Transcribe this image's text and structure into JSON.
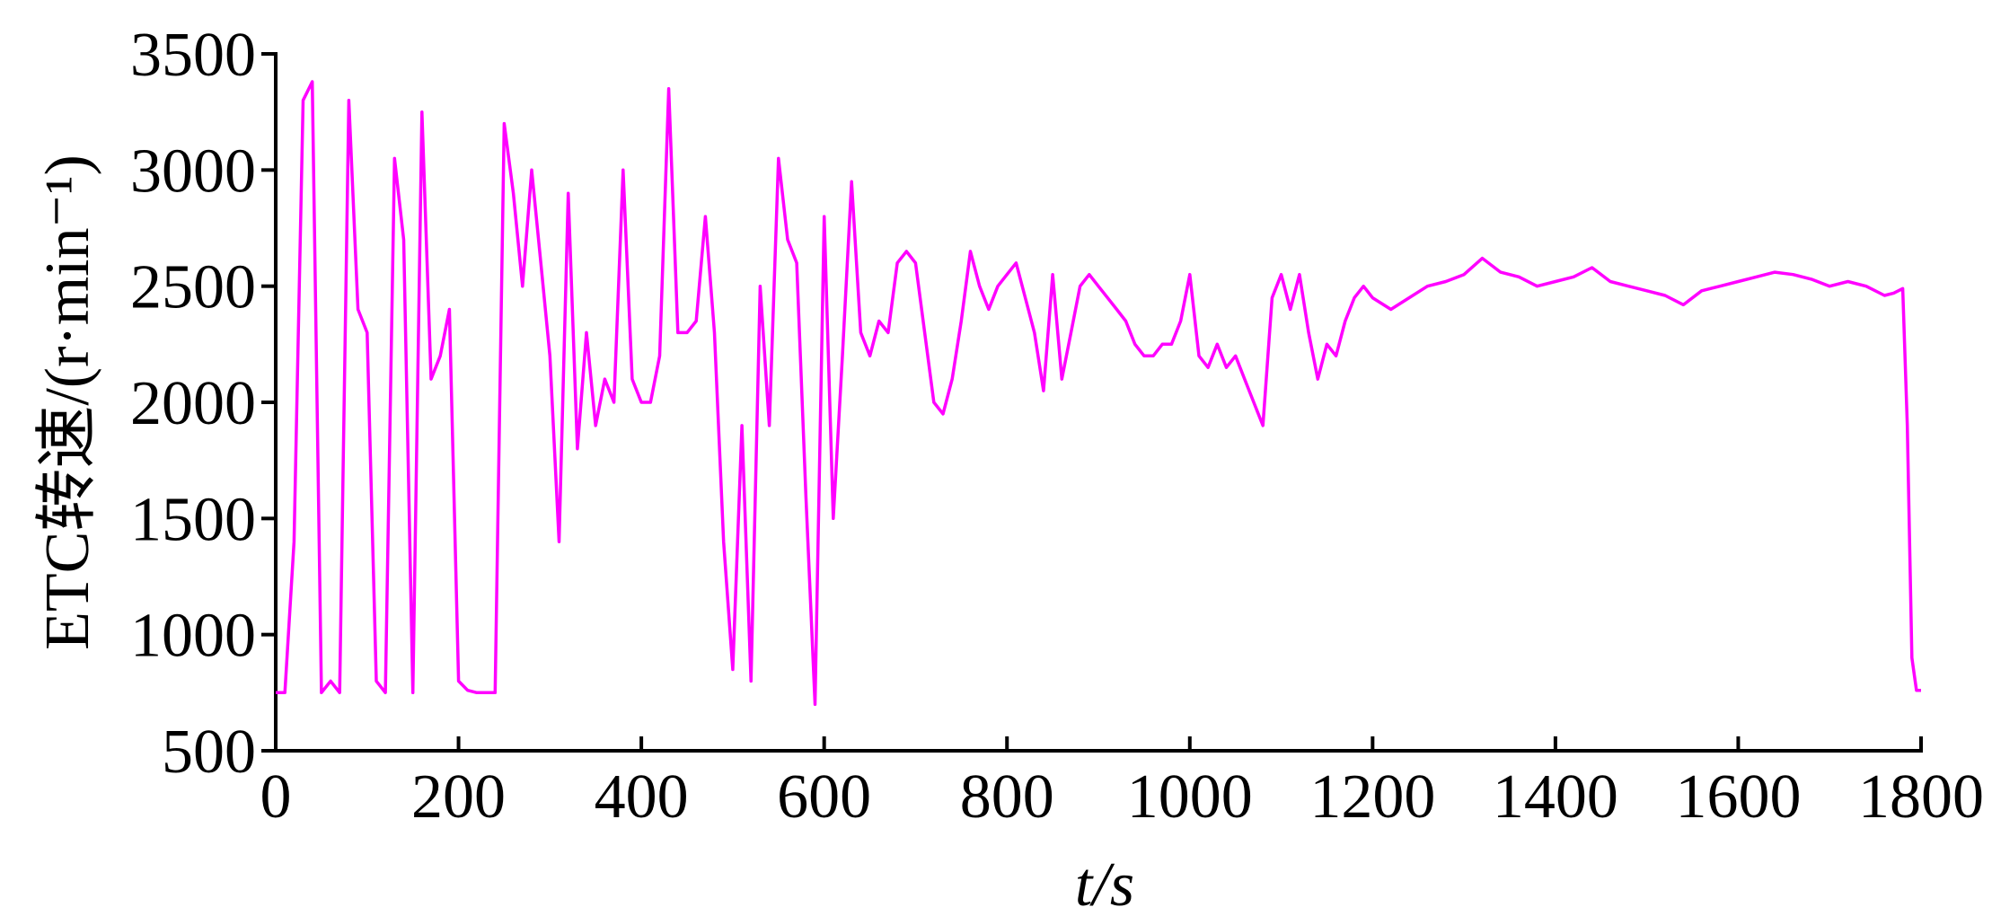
{
  "chart_data": {
    "type": "line",
    "xlabel": "t/s",
    "ylabel": "ETC转速/(r·min⁻¹)",
    "xlim": [
      0,
      1800
    ],
    "ylim": [
      500,
      3500
    ],
    "xticks": [
      0,
      200,
      400,
      600,
      800,
      1000,
      1200,
      1400,
      1600,
      1800
    ],
    "yticks": [
      500,
      1000,
      1500,
      2000,
      2500,
      3000,
      3500
    ],
    "grid": false,
    "x": [
      0,
      10,
      20,
      30,
      40,
      50,
      60,
      70,
      80,
      90,
      100,
      110,
      120,
      130,
      140,
      150,
      160,
      170,
      180,
      190,
      200,
      210,
      220,
      230,
      240,
      250,
      260,
      270,
      280,
      290,
      300,
      310,
      320,
      330,
      340,
      350,
      360,
      370,
      380,
      390,
      400,
      410,
      420,
      430,
      440,
      450,
      460,
      470,
      480,
      490,
      500,
      510,
      520,
      530,
      540,
      550,
      560,
      570,
      580,
      590,
      600,
      610,
      620,
      630,
      640,
      650,
      660,
      670,
      680,
      690,
      700,
      710,
      720,
      730,
      740,
      750,
      760,
      770,
      780,
      790,
      800,
      810,
      820,
      830,
      840,
      850,
      860,
      870,
      880,
      890,
      900,
      910,
      920,
      930,
      940,
      950,
      960,
      970,
      980,
      990,
      1000,
      1010,
      1020,
      1030,
      1040,
      1050,
      1060,
      1070,
      1080,
      1090,
      1100,
      1110,
      1120,
      1130,
      1140,
      1150,
      1160,
      1170,
      1180,
      1190,
      1200,
      1220,
      1240,
      1260,
      1280,
      1300,
      1320,
      1340,
      1360,
      1380,
      1400,
      1420,
      1440,
      1460,
      1480,
      1500,
      1520,
      1540,
      1560,
      1580,
      1600,
      1620,
      1640,
      1660,
      1680,
      1700,
      1720,
      1740,
      1760,
      1770,
      1780,
      1785,
      1790,
      1795,
      1800
    ],
    "series": [
      {
        "name": "ETC",
        "color": "#ff00ff",
        "values": [
          750,
          750,
          1400,
          3300,
          3380,
          750,
          800,
          750,
          3300,
          2400,
          2300,
          800,
          750,
          3050,
          2700,
          750,
          3250,
          2100,
          2200,
          2400,
          800,
          760,
          750,
          750,
          750,
          3200,
          2900,
          2500,
          3000,
          2600,
          2200,
          1400,
          2900,
          1800,
          2300,
          1900,
          2100,
          2000,
          3000,
          2100,
          2000,
          2000,
          2200,
          3350,
          2300,
          2300,
          2350,
          2800,
          2300,
          1400,
          850,
          1900,
          800,
          2500,
          1900,
          3050,
          2700,
          2600,
          1600,
          700,
          2800,
          1500,
          2200,
          2950,
          2300,
          2200,
          2350,
          2300,
          2600,
          2650,
          2600,
          2300,
          2000,
          1950,
          2100,
          2350,
          2650,
          2500,
          2400,
          2500,
          2550,
          2600,
          2450,
          2300,
          2050,
          2550,
          2100,
          2300,
          2500,
          2550,
          2500,
          2450,
          2400,
          2350,
          2250,
          2200,
          2200,
          2250,
          2250,
          2350,
          2550,
          2200,
          2150,
          2250,
          2150,
          2200,
          2100,
          2000,
          1900,
          2450,
          2550,
          2400,
          2550,
          2300,
          2100,
          2250,
          2200,
          2350,
          2450,
          2500,
          2450,
          2400,
          2450,
          2500,
          2520,
          2550,
          2620,
          2560,
          2540,
          2500,
          2520,
          2540,
          2580,
          2520,
          2500,
          2480,
          2460,
          2420,
          2480,
          2500,
          2520,
          2540,
          2560,
          2550,
          2530,
          2500,
          2520,
          2500,
          2460,
          2470,
          2490,
          1900,
          900,
          760,
          760
        ]
      }
    ]
  }
}
